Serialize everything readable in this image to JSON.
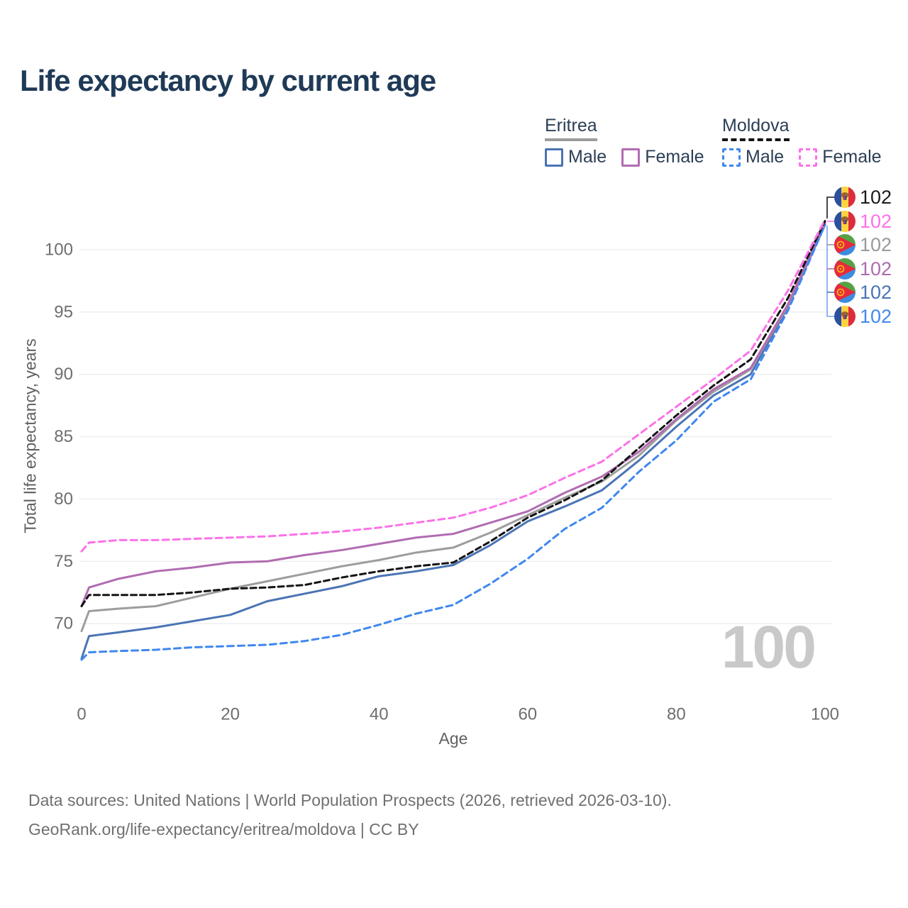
{
  "header": {
    "title": "Life expectancy by current age"
  },
  "legend": {
    "groups": [
      {
        "label": "Eritrea",
        "line_style": "solid",
        "underline_color": "#9c9c9c",
        "items": [
          {
            "label": "Male",
            "color": "#4a74b4",
            "dashed": false
          },
          {
            "label": "Female",
            "color": "#b16cb1",
            "dashed": false
          }
        ]
      },
      {
        "label": "Moldova",
        "line_style": "dashed",
        "underline_color": "#141414",
        "items": [
          {
            "label": "Male",
            "color": "#3f87f0",
            "dashed": true
          },
          {
            "label": "Female",
            "color": "#fb72e8",
            "dashed": true
          }
        ]
      }
    ]
  },
  "chart_data": {
    "type": "line",
    "title": "Life expectancy by current age",
    "xlabel": "Age",
    "ylabel": "Total life expectancy, years",
    "x_ticks": [
      0,
      20,
      40,
      60,
      80,
      100
    ],
    "y_ticks": [
      70,
      75,
      80,
      85,
      90,
      95,
      100
    ],
    "xlim": [
      0,
      100
    ],
    "ylim": [
      65.5,
      103
    ],
    "grid": "horizontal-only",
    "legend_position": "top-right",
    "ages": [
      0,
      1,
      5,
      10,
      15,
      20,
      25,
      30,
      35,
      40,
      45,
      50,
      55,
      60,
      65,
      70,
      75,
      80,
      85,
      90,
      95,
      100
    ],
    "series": [
      {
        "id": "eritrea-male",
        "country": "Eritrea",
        "sex": "Male",
        "color": "#4a74b4",
        "dash": null,
        "values": [
          67.2,
          69.0,
          69.3,
          69.7,
          70.2,
          70.7,
          71.8,
          72.4,
          73.0,
          73.8,
          74.2,
          74.7,
          76.3,
          78.2,
          79.4,
          80.7,
          83.1,
          85.8,
          88.3,
          90.0,
          95.4,
          102.0
        ]
      },
      {
        "id": "eritrea-total",
        "country": "Eritrea",
        "sex": "Both",
        "color": "#9d9d9d",
        "dash": null,
        "values": [
          69.4,
          71.0,
          71.2,
          71.4,
          72.1,
          72.8,
          73.4,
          74.0,
          74.6,
          75.1,
          75.7,
          76.1,
          77.3,
          78.7,
          80.1,
          81.4,
          83.5,
          86.3,
          88.6,
          90.4,
          95.5,
          102.1
        ]
      },
      {
        "id": "eritrea-female",
        "country": "Eritrea",
        "sex": "Female",
        "color": "#b16cb1",
        "dash": null,
        "values": [
          71.4,
          72.9,
          73.6,
          74.2,
          74.5,
          74.9,
          75.0,
          75.5,
          75.9,
          76.4,
          76.9,
          77.2,
          78.1,
          79.0,
          80.5,
          81.8,
          83.8,
          86.4,
          88.8,
          90.5,
          95.6,
          102.2
        ]
      },
      {
        "id": "moldova-male",
        "country": "Moldova",
        "sex": "Male",
        "color": "#3f87f0",
        "dash": [
          9,
          6
        ],
        "values": [
          67.1,
          67.7,
          67.8,
          67.9,
          68.1,
          68.2,
          68.3,
          68.6,
          69.1,
          69.9,
          70.8,
          71.5,
          73.2,
          75.2,
          77.6,
          79.3,
          82.2,
          84.7,
          87.8,
          89.6,
          95.1,
          102.0
        ]
      },
      {
        "id": "moldova-total",
        "country": "Moldova",
        "sex": "Both",
        "color": "#141414",
        "dash": [
          8,
          5
        ],
        "values": [
          71.4,
          72.3,
          72.3,
          72.3,
          72.5,
          72.8,
          72.9,
          73.1,
          73.7,
          74.2,
          74.6,
          74.9,
          76.6,
          78.5,
          79.9,
          81.5,
          84.1,
          86.7,
          89.1,
          91.2,
          96.1,
          102.3
        ]
      },
      {
        "id": "moldova-female",
        "country": "Moldova",
        "sex": "Female",
        "color": "#fb72e8",
        "dash": [
          9,
          6
        ],
        "values": [
          75.8,
          76.5,
          76.7,
          76.7,
          76.8,
          76.9,
          77.0,
          77.2,
          77.4,
          77.7,
          78.1,
          78.5,
          79.3,
          80.3,
          81.7,
          83.0,
          85.2,
          87.4,
          89.6,
          91.9,
          96.7,
          102.4
        ]
      }
    ],
    "end_labels": [
      {
        "value": "102",
        "flag": "moldova",
        "series": "moldova-total",
        "color": "#1a1a1a"
      },
      {
        "value": "102",
        "flag": "moldova",
        "series": "moldova-female",
        "color": "#fb72e8"
      },
      {
        "value": "102",
        "flag": "eritrea",
        "series": "eritrea-total",
        "color": "#9a9a9a"
      },
      {
        "value": "102",
        "flag": "eritrea",
        "series": "eritrea-female",
        "color": "#ad6cad"
      },
      {
        "value": "102",
        "flag": "eritrea",
        "series": "eritrea-male",
        "color": "#4a74b4"
      },
      {
        "value": "102",
        "flag": "moldova",
        "series": "moldova-male",
        "color": "#4189ed"
      }
    ]
  },
  "plot": {
    "hover_age_label": "100"
  },
  "flags": {
    "moldova": {
      "blue": "#2a4fa2",
      "yellow": "#ffd23f",
      "red": "#dd2c3c",
      "emblem": "#9a6632"
    },
    "eritrea": {
      "green": "#55a345",
      "blue": "#3d8be0",
      "red": "#e8293b",
      "gold": "#f2b01c"
    }
  },
  "footer": {
    "line1": "Data sources: United Nations | World Population Prospects (2026, retrieved 2026-03-10).",
    "line2": "GeoRank.org/life-expectancy/eritrea/moldova | CC BY"
  }
}
